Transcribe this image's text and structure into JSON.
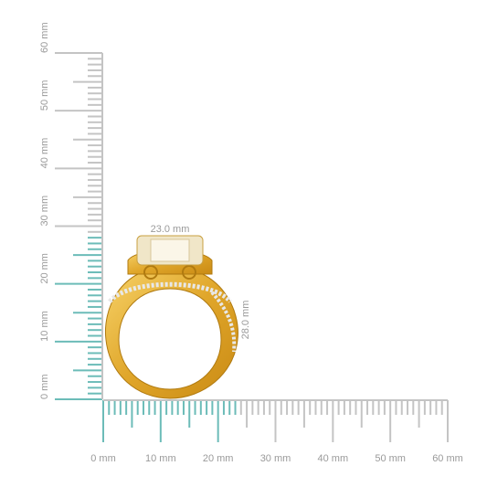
{
  "vertical_ruler": {
    "labels": [
      "0 mm",
      "10 mm",
      "20 mm",
      "30 mm",
      "40 mm",
      "50 mm",
      "60 mm"
    ]
  },
  "horizontal_ruler": {
    "labels": [
      "0 mm",
      "10 mm",
      "20 mm",
      "30 mm",
      "40 mm",
      "50 mm",
      "60 mm"
    ]
  },
  "dimensions": {
    "width": "23.0 mm",
    "height": "28.0 mm"
  }
}
